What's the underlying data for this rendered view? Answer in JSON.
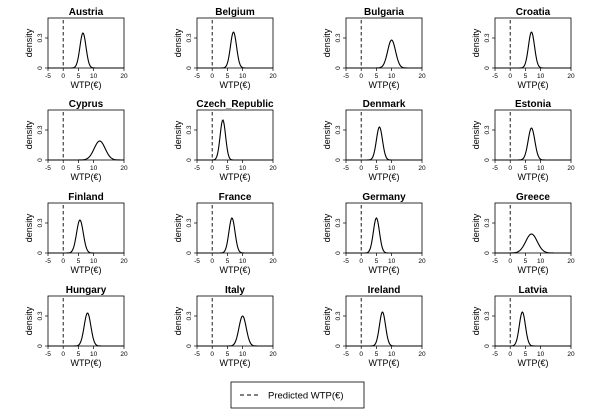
{
  "chart_data": {
    "type": "line",
    "x_axis_label": "WTP(€)",
    "y_axis_label": "density",
    "x_ticks": [
      -5,
      0,
      5,
      10,
      20
    ],
    "y_ticks": [
      0,
      0.3
    ],
    "xlim": [
      -5,
      20
    ],
    "ylim": [
      0,
      0.5
    ],
    "reference_line_x": 0,
    "legend": {
      "label": "Predicted WTP(€)",
      "position": "bottom-center"
    },
    "panels": [
      {
        "country": "Austria",
        "mean": 6.5,
        "sd": 1.0,
        "peak": 0.35
      },
      {
        "country": "Belgium",
        "mean": 7.0,
        "sd": 1.0,
        "peak": 0.36
      },
      {
        "country": "Bulgaria",
        "mean": 10.0,
        "sd": 1.3,
        "peak": 0.28
      },
      {
        "country": "Croatia",
        "mean": 7.0,
        "sd": 1.0,
        "peak": 0.36
      },
      {
        "country": "Cyprus",
        "mean": 12.0,
        "sd": 1.8,
        "peak": 0.19
      },
      {
        "country": "Czech_Republic",
        "mean": 3.5,
        "sd": 0.9,
        "peak": 0.4
      },
      {
        "country": "Denmark",
        "mean": 6.0,
        "sd": 1.0,
        "peak": 0.33
      },
      {
        "country": "Estonia",
        "mean": 7.0,
        "sd": 1.1,
        "peak": 0.32
      },
      {
        "country": "Finland",
        "mean": 5.5,
        "sd": 1.1,
        "peak": 0.33
      },
      {
        "country": "France",
        "mean": 6.5,
        "sd": 1.0,
        "peak": 0.35
      },
      {
        "country": "Germany",
        "mean": 5.0,
        "sd": 1.0,
        "peak": 0.35
      },
      {
        "country": "Greece",
        "mean": 7.0,
        "sd": 1.9,
        "peak": 0.19
      },
      {
        "country": "Hungary",
        "mean": 8.0,
        "sd": 1.1,
        "peak": 0.33
      },
      {
        "country": "Italy",
        "mean": 10.0,
        "sd": 1.2,
        "peak": 0.3
      },
      {
        "country": "Ireland",
        "mean": 7.0,
        "sd": 1.0,
        "peak": 0.34
      },
      {
        "country": "Latvia",
        "mean": 4.0,
        "sd": 1.0,
        "peak": 0.34
      }
    ]
  }
}
